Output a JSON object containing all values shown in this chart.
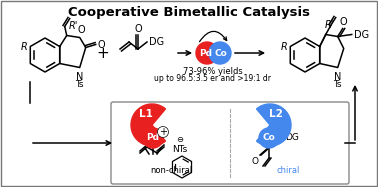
{
  "title": "Cooperative Bimetallic Catalysis",
  "title_fontsize": 9.5,
  "bg_color": "#ffffff",
  "border_color": "#777777",
  "pd_color": "#e82020",
  "co_color": "#4488ee",
  "pd_label": "Pd",
  "co_label": "Co",
  "l1_label": "L1",
  "l2_label": "L2",
  "yield_text": "73-96% yields",
  "er_dr_text": "up to 96.5:3.5 er and >19:1 dr",
  "nonchiral_label": "non-chiral",
  "chiral_label": "chiral",
  "text_color": "#000000",
  "box_border": "#888888",
  "dashed_line_color": "#aaaaaa",
  "figsize": [
    3.78,
    1.87
  ],
  "dpi": 100
}
